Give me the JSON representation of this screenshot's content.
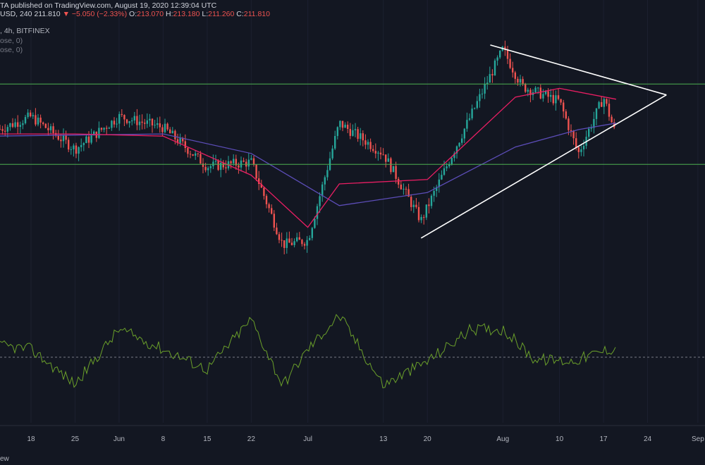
{
  "header": {
    "author_fragment": "TA",
    "published": "published on TradingView.com, August 19, 2020 12:39:04 UTC",
    "symbol_fragment": "USD, 240",
    "last": "211.810",
    "change": "▼ −5.050 (−2.33%)",
    "o_label": "O:",
    "o": "213.070",
    "h_label": "H:",
    "h": "213.180",
    "l_label": "L:",
    "l": "211.260",
    "c_label": "C:",
    "c": "211.810",
    "line2": ", 4h, BITFINEX",
    "line3": "ose, 0)",
    "line4": "ose, 0)"
  },
  "footer": {
    "brand_fragment": "ew"
  },
  "colors": {
    "background": "#131722",
    "candle_up": "#26a69a",
    "candle_down": "#ef5350",
    "ma_fast": "#e91e63",
    "ma_slow": "#5c4db8",
    "levels": "#4caf50",
    "trendlines": "#ffffff",
    "oscillator": "#6a9f2a"
  },
  "chart_data": {
    "type": "line",
    "x_tick_labels": [
      "18",
      "25",
      "Jun",
      "8",
      "15",
      "22",
      "Jul",
      "13",
      "20",
      "Aug",
      "10",
      "17",
      "24",
      "Sep"
    ],
    "price_series": {
      "x": [
        "May 12",
        "May 18",
        "May 25",
        "Jun 1",
        "Jun 8",
        "Jun 15",
        "Jun 22",
        "Jun 27",
        "Jul 1",
        "Jul 6",
        "Jul 13",
        "Jul 19",
        "Jul 24",
        "Aug 1",
        "Aug 4",
        "Aug 10",
        "Aug 13",
        "Aug 17",
        "Aug 19"
      ],
      "values": [
        0.62,
        0.69,
        0.54,
        0.69,
        0.64,
        0.46,
        0.48,
        0.1,
        0.12,
        0.66,
        0.52,
        0.21,
        0.52,
        1.0,
        0.83,
        0.76,
        0.52,
        0.78,
        0.6
      ]
    },
    "ma_fast": {
      "x": [
        "May 12",
        "May 25",
        "Jun 8",
        "Jun 22",
        "Jul 1",
        "Jul 6",
        "Jul 20",
        "Aug 3",
        "Aug 10",
        "Aug 19"
      ],
      "values": [
        0.61,
        0.61,
        0.6,
        0.42,
        0.18,
        0.38,
        0.4,
        0.78,
        0.82,
        0.77
      ]
    },
    "ma_slow": {
      "x": [
        "May 12",
        "Jun 8",
        "Jun 22",
        "Jul 6",
        "Jul 20",
        "Aug 3",
        "Aug 13",
        "Aug 19"
      ],
      "values": [
        0.6,
        0.61,
        0.52,
        0.28,
        0.34,
        0.55,
        0.63,
        0.66
      ]
    },
    "levels": [
      0.84,
      0.47
    ],
    "triangle": {
      "upper": {
        "x": [
          "Jul 30",
          "Aug 27"
        ],
        "values": [
          1.02,
          0.79
        ]
      },
      "lower": {
        "x": [
          "Jul 19",
          "Aug 27"
        ],
        "values": [
          0.13,
          0.79
        ]
      }
    },
    "oscillator": {
      "baseline": 0.5,
      "x": [
        "May 12",
        "May 18",
        "May 25",
        "Jun 1",
        "Jun 8",
        "Jun 15",
        "Jun 22",
        "Jun 27",
        "Jul 1",
        "Jul 6",
        "Jul 13",
        "Jul 20",
        "Jul 27",
        "Aug 1",
        "Aug 6",
        "Aug 12",
        "Aug 15",
        "Aug 19"
      ],
      "values": [
        0.62,
        0.58,
        0.23,
        0.78,
        0.58,
        0.38,
        0.88,
        0.22,
        0.58,
        0.92,
        0.22,
        0.46,
        0.78,
        0.78,
        0.48,
        0.46,
        0.52,
        0.6
      ]
    }
  }
}
